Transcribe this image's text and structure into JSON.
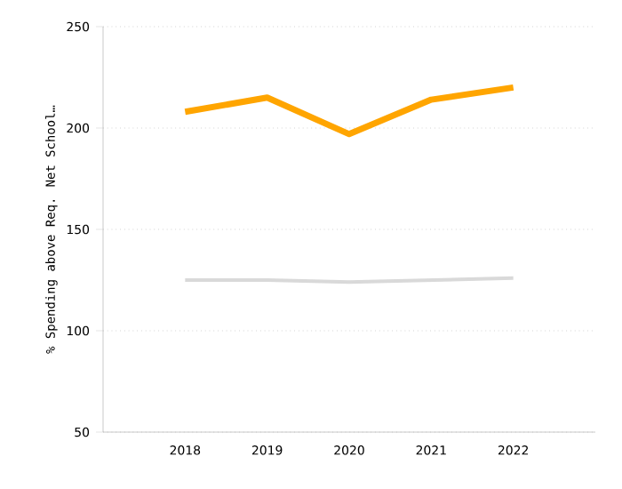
{
  "chart_data": {
    "type": "line",
    "ylabel": "% Spending above Req. Net School…",
    "categories": [
      "2018",
      "2019",
      "2020",
      "2021",
      "2022"
    ],
    "series": [
      {
        "color": "#ffa500",
        "values": [
          208,
          215,
          197,
          214,
          220
        ]
      },
      {
        "color": "#d9d9d9",
        "values": [
          125,
          125,
          124,
          125,
          126
        ]
      }
    ],
    "ylim": [
      50,
      250
    ],
    "yticks": [
      50,
      100,
      150,
      200,
      250
    ],
    "grid": "y",
    "marker": "none",
    "line_style": "solid"
  }
}
